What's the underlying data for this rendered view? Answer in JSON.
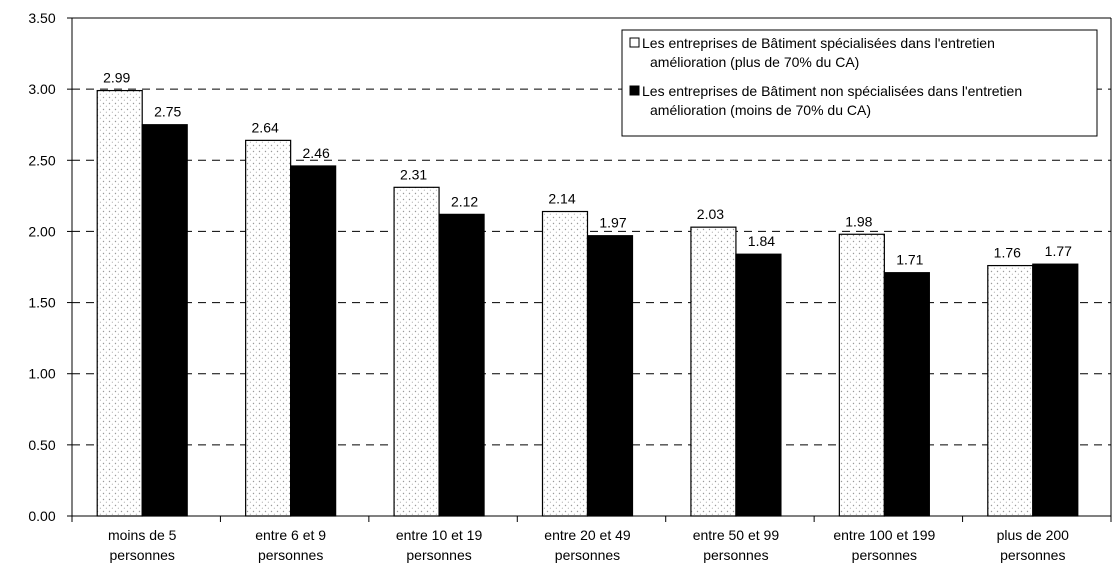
{
  "chart_data": {
    "type": "bar",
    "categories": [
      [
        "moins de 5",
        "personnes"
      ],
      [
        "entre 6 et 9",
        "personnes"
      ],
      [
        "entre 10 et 19",
        "personnes"
      ],
      [
        "entre 20 et 49",
        "personnes"
      ],
      [
        "entre 50 et 99",
        "personnes"
      ],
      [
        "entre 100 et 199",
        "personnes"
      ],
      [
        "plus de 200",
        "personnes"
      ]
    ],
    "series": [
      {
        "name": "Les entreprises de Bâtiment spécialisées dans l'entretien amélioration (plus de 70% du CA)",
        "legend_lines": [
          "Les entreprises de Bâtiment spécialisées dans l'entretien",
          "amélioration (plus de 70% du CA)"
        ],
        "values": [
          2.99,
          2.64,
          2.31,
          2.14,
          2.03,
          1.98,
          1.76
        ],
        "labels": [
          "2.99",
          "2.64",
          "2.31",
          "2.14",
          "2.03",
          "1.98",
          "1.76"
        ],
        "fill": "#ffffff",
        "stroke": "#000000",
        "stipple": "#8a8a8a"
      },
      {
        "name": "Les entreprises de Bâtiment non spécialisées dans l'entretien amélioration (moins de 70% du CA)",
        "legend_lines": [
          "Les entreprises de Bâtiment non spécialisées dans l'entretien",
          "amélioration (moins de 70% du CA)"
        ],
        "values": [
          2.75,
          2.46,
          2.12,
          1.97,
          1.84,
          1.71,
          1.77
        ],
        "labels": [
          "2.75",
          "2.46",
          "2.12",
          "1.97",
          "1.84",
          "1.71",
          "1.77"
        ],
        "fill": "#000000",
        "stroke": "#000000"
      }
    ],
    "y_ticks": [
      0,
      0.5,
      1,
      1.5,
      2,
      2.5,
      3,
      3.5
    ],
    "y_tick_labels": [
      "0.00",
      "0.50",
      "1.00",
      "1.50",
      "2.00",
      "2.50",
      "3.00",
      "3.50"
    ],
    "ylim": [
      0,
      3.5
    ],
    "grid": "dashed horizontal",
    "legend_position": "top-right"
  }
}
